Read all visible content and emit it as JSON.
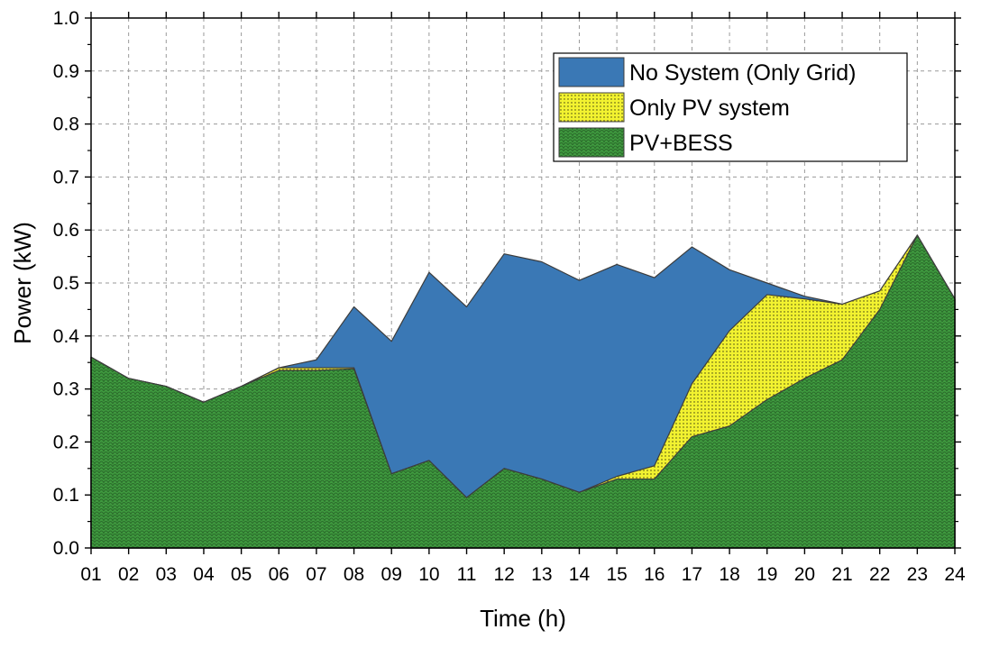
{
  "chart_data": {
    "type": "area",
    "title": "",
    "xlabel": "Time (h)",
    "ylabel": "Power (kW)",
    "ylim": [
      0,
      1.0
    ],
    "yticks": [
      "0.0",
      "0.1",
      "0.2",
      "0.3",
      "0.4",
      "0.5",
      "0.6",
      "0.7",
      "0.8",
      "0.9",
      "1.0"
    ],
    "categories": [
      "01",
      "02",
      "03",
      "04",
      "05",
      "06",
      "07",
      "08",
      "09",
      "10",
      "11",
      "12",
      "13",
      "14",
      "15",
      "16",
      "17",
      "18",
      "19",
      "20",
      "21",
      "22",
      "23",
      "24"
    ],
    "grid": true,
    "legend_position": "top-right",
    "series": [
      {
        "name": "No System (Only Grid)",
        "color": "#3a78b5",
        "pattern": "solid",
        "values": [
          0.36,
          0.32,
          0.305,
          0.275,
          0.305,
          0.34,
          0.355,
          0.455,
          0.39,
          0.52,
          0.455,
          0.555,
          0.54,
          0.505,
          0.535,
          0.51,
          0.568,
          0.525,
          0.5,
          0.475,
          0.46,
          0.485,
          0.59,
          0.47
        ]
      },
      {
        "name": "Only PV system",
        "color": "#f2f230",
        "pattern": "dots",
        "values": [
          0.36,
          0.32,
          0.305,
          0.275,
          0.305,
          0.34,
          0.34,
          0.34,
          0.14,
          0.165,
          0.095,
          0.15,
          0.13,
          0.105,
          0.135,
          0.155,
          0.31,
          0.41,
          0.478,
          0.47,
          0.46,
          0.485,
          0.59,
          0.47
        ]
      },
      {
        "name": "PV+BESS",
        "color": "#3f9a3f",
        "pattern": "scales",
        "values": [
          0.36,
          0.32,
          0.305,
          0.275,
          0.305,
          0.335,
          0.335,
          0.338,
          0.14,
          0.165,
          0.095,
          0.15,
          0.13,
          0.105,
          0.13,
          0.13,
          0.21,
          0.23,
          0.28,
          0.32,
          0.355,
          0.45,
          0.59,
          0.47
        ]
      }
    ]
  }
}
